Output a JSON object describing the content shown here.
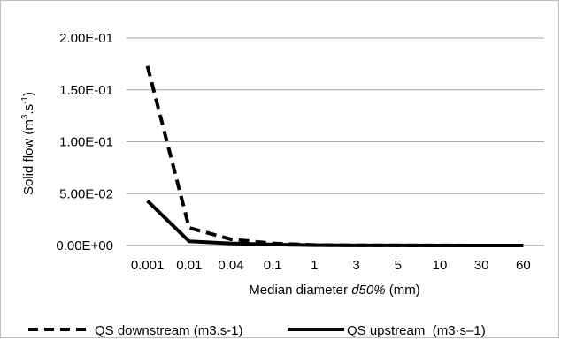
{
  "chart_data": {
    "type": "line",
    "title": "",
    "xlabel_prefix": "Median diameter ",
    "xlabel_var": "d50%",
    "xlabel_suffix": " (mm)",
    "ylabel_main": "Solid   flow (m",
    "ylabel_sup1": "3",
    "ylabel_mid": ".s",
    "ylabel_sup2": "-1",
    "ylabel_end": ")",
    "categories": [
      "0.001",
      "0.01",
      "0.04",
      "0.1",
      "1",
      "3",
      "5",
      "10",
      "30",
      "60"
    ],
    "yticks": [
      "0.00E+00",
      "5.00E-02",
      "1.00E-01",
      "1.50E-01",
      "2.00E-01"
    ],
    "ytick_values": [
      0,
      0.05,
      0.1,
      0.15,
      0.2
    ],
    "ylim": [
      0,
      0.2
    ],
    "grid": true,
    "legend_position": "bottom",
    "series": [
      {
        "name": "QS downstream (m3.s-1)",
        "style": "dashed",
        "color": "#000000",
        "values": [
          0.173,
          0.017,
          0.006,
          0.002,
          0.0005,
          0.0002,
          0.0001,
          0.0001,
          0.0,
          0.0
        ]
      },
      {
        "name": "QS upstream  (m3·s–1)",
        "style": "solid",
        "color": "#000000",
        "values": [
          0.043,
          0.004,
          0.002,
          0.001,
          0.0003,
          0.0001,
          0.0001,
          0.0,
          0.0,
          0.0
        ]
      }
    ]
  }
}
